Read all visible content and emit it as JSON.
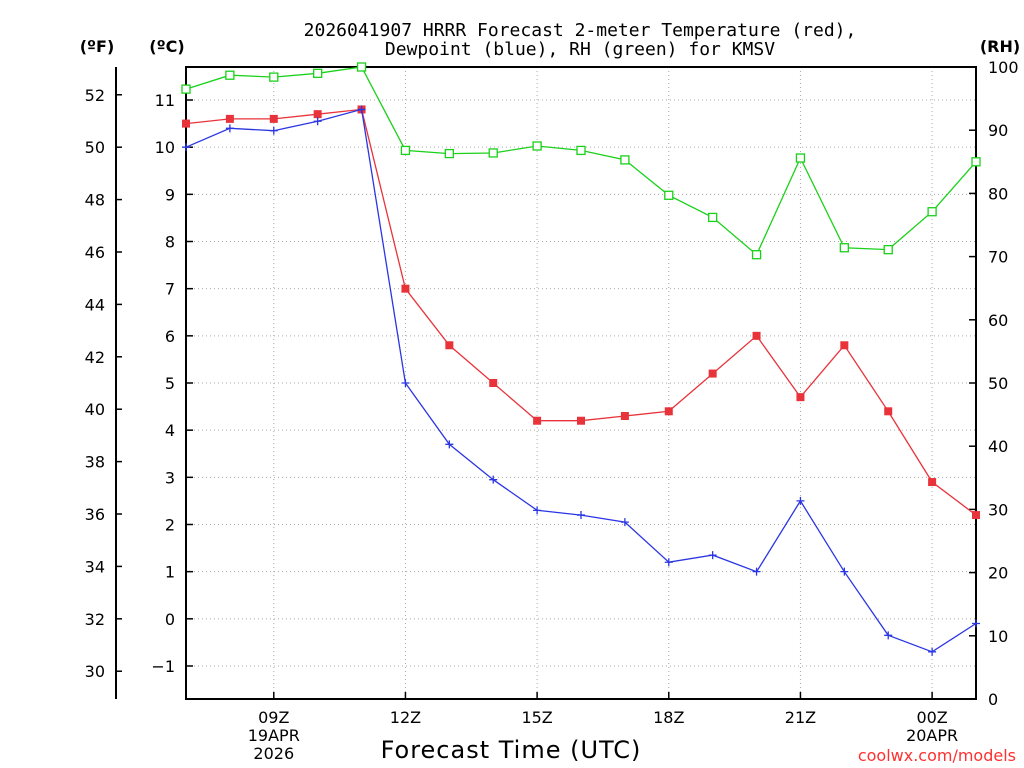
{
  "chart_data": {
    "type": "line",
    "title_line1": "2026041907 HRRR Forecast 2-meter Temperature (red),",
    "title_line2": "Dewpoint (blue), RH (green) for KMSV",
    "xlabel": "Forecast Time (UTC)",
    "credit": "coolwx.com/models",
    "axis_labels": {
      "fahrenheit": "(ºF)",
      "celsius": "(ºC)",
      "rh": "(RH)"
    },
    "colors": {
      "temperature": "#e8333a",
      "dewpoint": "#2b36e3",
      "rh": "#19d119",
      "credit": "#ff3030"
    },
    "x_hours": [
      7,
      8,
      9,
      10,
      11,
      12,
      13,
      14,
      15,
      16,
      17,
      18,
      19,
      20,
      21,
      22,
      23,
      24,
      25
    ],
    "x_range": [
      7,
      25
    ],
    "x_ticks": [
      {
        "hour": 9,
        "lines": [
          "09Z",
          "19APR",
          "2026"
        ]
      },
      {
        "hour": 12,
        "lines": [
          "12Z"
        ]
      },
      {
        "hour": 15,
        "lines": [
          "15Z"
        ]
      },
      {
        "hour": 18,
        "lines": [
          "18Z"
        ]
      },
      {
        "hour": 21,
        "lines": [
          "21Z"
        ]
      },
      {
        "hour": 24,
        "lines": [
          "00Z",
          "20APR"
        ]
      }
    ],
    "celsius_axis": {
      "range": [
        -1.7,
        11.7
      ],
      "ticks": [
        "11",
        "10",
        "9",
        "8",
        "7",
        "6",
        "5",
        "4",
        "3",
        "2",
        "1",
        "0",
        "−1"
      ]
    },
    "fahrenheit_axis": {
      "ticks": [
        "52",
        "50",
        "48",
        "46",
        "44",
        "42",
        "40",
        "38",
        "36",
        "34",
        "32",
        "30"
      ]
    },
    "rh_axis": {
      "range": [
        0,
        100
      ],
      "ticks": [
        "100",
        "90",
        "80",
        "70",
        "60",
        "50",
        "40",
        "30",
        "20",
        "10",
        "0"
      ]
    },
    "series": [
      {
        "name": "Temperature",
        "axis": "C",
        "marker": "filled-square",
        "color_key": "temperature",
        "values": [
          10.5,
          10.6,
          10.6,
          10.7,
          10.8,
          7.0,
          5.8,
          5.0,
          4.2,
          4.2,
          4.3,
          4.4,
          5.2,
          6.0,
          4.7,
          5.8,
          4.4,
          2.9,
          2.2
        ]
      },
      {
        "name": "Dewpoint",
        "axis": "C",
        "marker": "plus",
        "color_key": "dewpoint",
        "values": [
          10.0,
          10.4,
          10.35,
          10.55,
          10.8,
          5.0,
          3.7,
          2.95,
          2.3,
          2.2,
          2.05,
          1.2,
          1.35,
          1.0,
          2.5,
          1.0,
          -0.35,
          -0.7,
          -0.1
        ]
      },
      {
        "name": "RH",
        "axis": "RH",
        "marker": "open-square",
        "color_key": "rh",
        "values": [
          96.5,
          98.7,
          98.4,
          99.0,
          100.0,
          86.8,
          86.3,
          86.4,
          87.5,
          86.8,
          85.3,
          79.7,
          76.2,
          70.3,
          85.6,
          71.4,
          71.1,
          77.1,
          85.0
        ]
      }
    ]
  }
}
